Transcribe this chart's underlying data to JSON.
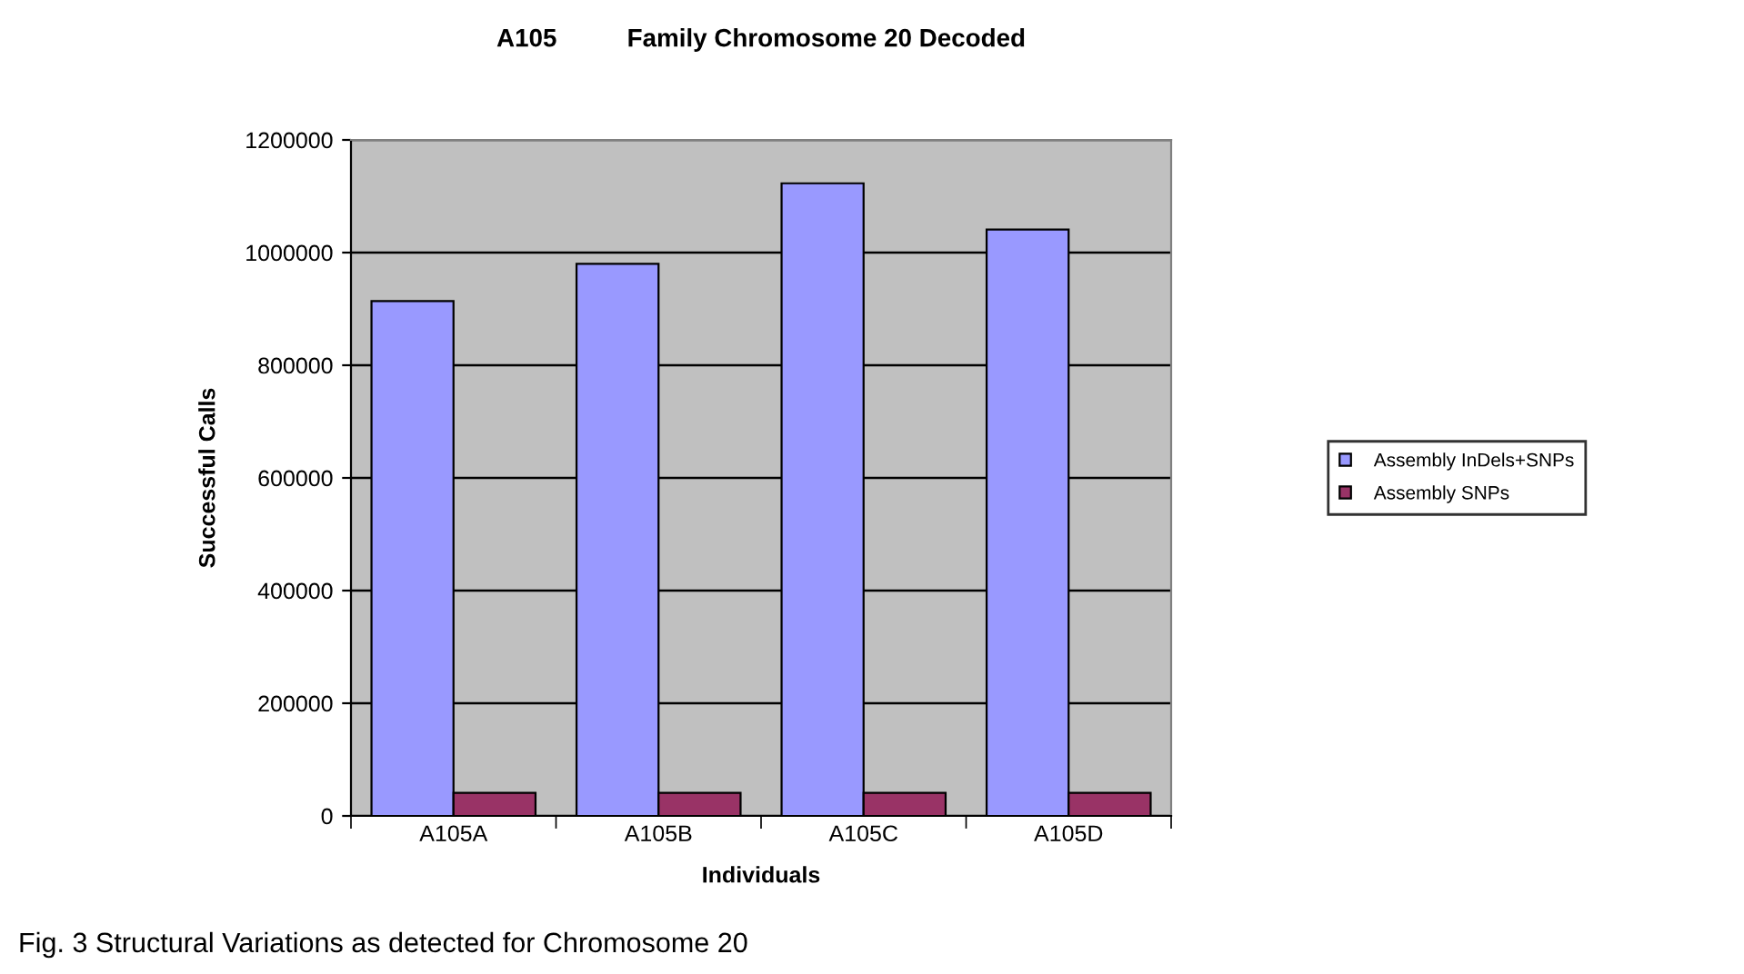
{
  "chart_data": {
    "type": "bar",
    "title": "A105          Family Chromosome 20 Decoded",
    "xlabel": "Individuals",
    "ylabel": "Successful Calls",
    "categories": [
      "A105A",
      "A105B",
      "A105C",
      "A105D"
    ],
    "series": [
      {
        "name": "Assembly InDels+SNPs",
        "color": "#9999ff",
        "values": [
          914000,
          980000,
          1123000,
          1041000
        ]
      },
      {
        "name": "Assembly SNPs",
        "color": "#993366",
        "values": [
          41000,
          41000,
          41000,
          41000
        ]
      }
    ],
    "ylim": [
      0,
      1200000
    ],
    "yticks": [
      0,
      200000,
      400000,
      600000,
      800000,
      1000000,
      1200000
    ],
    "grid": "y",
    "legend": "right",
    "annotations": [
      "Fig. 3 Structural Variations as detected for Chromosome 20"
    ]
  }
}
